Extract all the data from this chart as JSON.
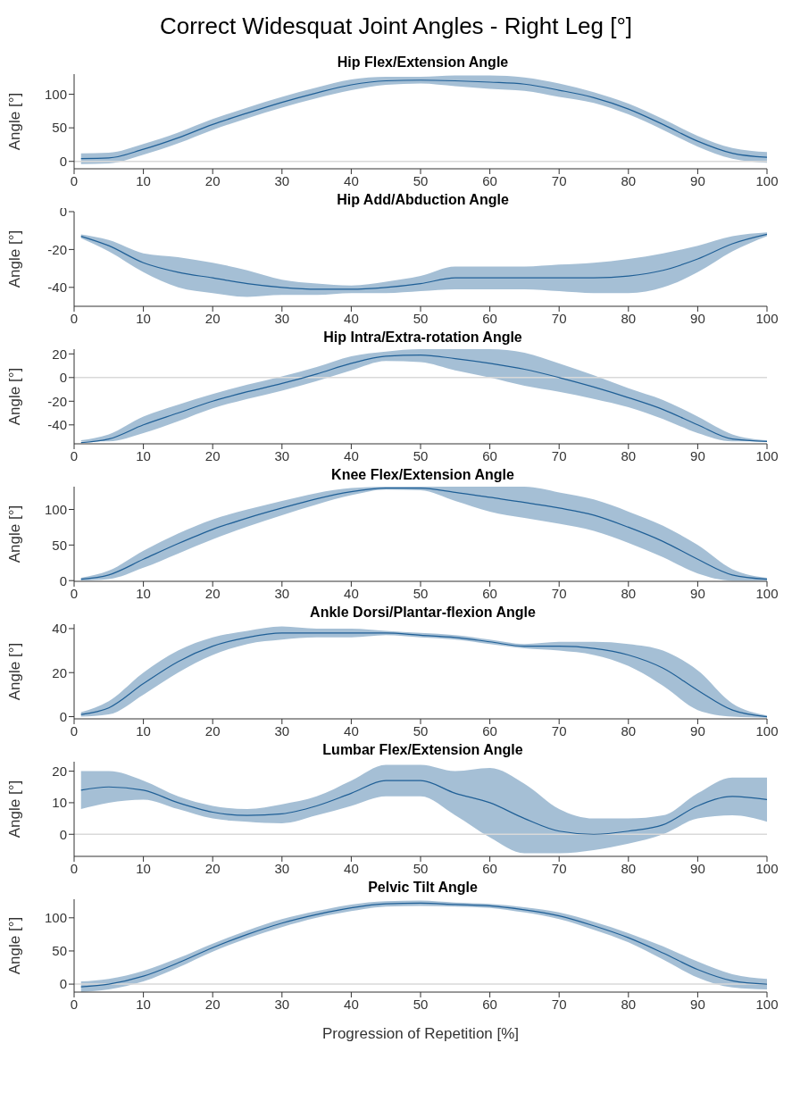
{
  "chart_data": [
    {
      "type": "line",
      "title": "Correct Widesquat Joint Angles - Right Leg [°]",
      "subtitle": "Hip Flex/Extension Angle",
      "ylabel": "Angle [°]",
      "x": [
        1,
        5,
        10,
        15,
        20,
        25,
        30,
        35,
        40,
        45,
        50,
        55,
        60,
        65,
        70,
        75,
        80,
        85,
        90,
        95,
        100
      ],
      "xlim": [
        0,
        100
      ],
      "xticks": [
        0,
        10,
        20,
        30,
        40,
        50,
        60,
        70,
        80,
        90,
        100
      ],
      "ylim": [
        -11,
        130
      ],
      "yticks": [
        0,
        50,
        100
      ],
      "ref_lines": [
        {
          "axis": "y",
          "value": 0,
          "color": "#d9d9d9"
        }
      ],
      "series": [
        {
          "color": "#1f5f96",
          "values": [
            4,
            5,
            18,
            35,
            55,
            72,
            88,
            102,
            114,
            120,
            121,
            120,
            118,
            115,
            106,
            95,
            78,
            55,
            30,
            12,
            6
          ],
          "lower": [
            -4,
            -3,
            10,
            27,
            47,
            64,
            80,
            94,
            106,
            114,
            116,
            112,
            108,
            105,
            96,
            87,
            70,
            47,
            22,
            4,
            -2
          ],
          "upper": [
            12,
            13,
            26,
            43,
            63,
            80,
            96,
            110,
            122,
            126,
            126,
            128,
            128,
            125,
            116,
            103,
            86,
            63,
            38,
            20,
            14
          ]
        }
      ]
    },
    {
      "type": "line",
      "subtitle": "Hip Add/Abduction Angle",
      "ylabel": "Angle [°]",
      "x": [
        1,
        5,
        10,
        15,
        20,
        25,
        30,
        35,
        40,
        45,
        50,
        55,
        60,
        65,
        70,
        75,
        80,
        85,
        90,
        95,
        100
      ],
      "xlim": [
        0,
        100
      ],
      "xticks": [
        0,
        10,
        20,
        30,
        40,
        50,
        60,
        70,
        80,
        90,
        100
      ],
      "ylim": [
        -50,
        0
      ],
      "yticks": [
        -40,
        -20,
        0
      ],
      "series": [
        {
          "color": "#1f5f96",
          "values": [
            -13,
            -18,
            -27,
            -32,
            -35,
            -38,
            -40,
            -41,
            -41,
            -40,
            -38,
            -35,
            -35,
            -35,
            -35,
            -35,
            -34,
            -31,
            -25,
            -17,
            -12
          ],
          "lower": [
            -14,
            -21,
            -32,
            -40,
            -43,
            -45,
            -44,
            -44,
            -43,
            -43,
            -42,
            -41,
            -41,
            -41,
            -42,
            -43,
            -43,
            -40,
            -32,
            -21,
            -13
          ],
          "upper": [
            -12,
            -15,
            -22,
            -24,
            -27,
            -31,
            -36,
            -38,
            -39,
            -37,
            -34,
            -29,
            -29,
            -29,
            -28,
            -27,
            -25,
            -22,
            -18,
            -13,
            -11
          ]
        }
      ]
    },
    {
      "type": "line",
      "subtitle": "Hip Intra/Extra-rotation Angle",
      "ylabel": "Angle [°]",
      "x": [
        1,
        5,
        10,
        15,
        20,
        25,
        30,
        35,
        40,
        45,
        50,
        55,
        60,
        65,
        70,
        75,
        80,
        85,
        90,
        95,
        100
      ],
      "xlim": [
        0,
        100
      ],
      "xticks": [
        0,
        10,
        20,
        30,
        40,
        50,
        60,
        70,
        80,
        90,
        100
      ],
      "ylim": [
        -56,
        24
      ],
      "yticks": [
        -40,
        -20,
        0,
        20
      ],
      "ref_lines": [
        {
          "axis": "y",
          "value": 0,
          "color": "#d9d9d9"
        }
      ],
      "series": [
        {
          "color": "#1f5f96",
          "values": [
            -55,
            -52,
            -40,
            -30,
            -20,
            -12,
            -5,
            3,
            12,
            18,
            19,
            16,
            12,
            7,
            0,
            -8,
            -17,
            -27,
            -40,
            -52,
            -54
          ],
          "lower": [
            -54,
            -54,
            -47,
            -37,
            -26,
            -18,
            -11,
            -3,
            6,
            14,
            13,
            6,
            0,
            -7,
            -12,
            -18,
            -25,
            -35,
            -47,
            -54,
            -54
          ],
          "upper": [
            -53,
            -48,
            -33,
            -23,
            -14,
            -6,
            1,
            9,
            18,
            22,
            24,
            24,
            24,
            21,
            12,
            2,
            -9,
            -19,
            -33,
            -48,
            -53
          ]
        }
      ]
    },
    {
      "type": "line",
      "subtitle": "Knee Flex/Extension Angle",
      "ylabel": "Angle [°]",
      "x": [
        1,
        5,
        10,
        15,
        20,
        25,
        30,
        35,
        40,
        45,
        50,
        55,
        60,
        65,
        70,
        75,
        80,
        85,
        90,
        95,
        100
      ],
      "xlim": [
        0,
        100
      ],
      "xticks": [
        0,
        10,
        20,
        30,
        40,
        50,
        60,
        70,
        80,
        90,
        100
      ],
      "ylim": [
        -1,
        132
      ],
      "yticks": [
        0,
        50,
        100
      ],
      "series": [
        {
          "color": "#1f5f96",
          "values": [
            2,
            8,
            30,
            52,
            72,
            88,
            102,
            115,
            125,
            130,
            130,
            124,
            117,
            110,
            102,
            92,
            75,
            55,
            30,
            8,
            2
          ],
          "lower": [
            0,
            2,
            18,
            38,
            58,
            76,
            92,
            107,
            120,
            128,
            127,
            112,
            97,
            88,
            80,
            70,
            53,
            33,
            10,
            0,
            0
          ],
          "upper": [
            4,
            14,
            42,
            66,
            86,
            100,
            112,
            123,
            130,
            132,
            132,
            132,
            132,
            132,
            124,
            114,
            97,
            77,
            50,
            16,
            4
          ]
        }
      ]
    },
    {
      "type": "line",
      "subtitle": "Ankle Dorsi/Plantar-flexion Angle",
      "ylabel": "Angle [°]",
      "x": [
        1,
        5,
        10,
        15,
        20,
        25,
        30,
        35,
        40,
        45,
        50,
        55,
        60,
        65,
        70,
        75,
        80,
        85,
        90,
        95,
        100
      ],
      "xlim": [
        0,
        100
      ],
      "xticks": [
        0,
        10,
        20,
        30,
        40,
        50,
        60,
        70,
        80,
        90,
        100
      ],
      "ylim": [
        -1,
        42
      ],
      "yticks": [
        0,
        20,
        40
      ],
      "series": [
        {
          "color": "#1f5f96",
          "values": [
            1,
            4,
            15,
            25,
            32,
            36,
            38,
            38,
            38,
            38,
            37,
            36,
            34,
            32,
            32,
            31,
            28,
            22,
            12,
            3,
            0
          ],
          "lower": [
            0,
            1,
            10,
            20,
            28,
            33,
            35,
            36,
            36,
            37,
            36,
            35,
            33,
            31,
            30,
            28,
            23,
            14,
            3,
            0,
            -0.5
          ],
          "upper": [
            2,
            7,
            20,
            30,
            36,
            39,
            41,
            40,
            40,
            39,
            38,
            37,
            35,
            33,
            34,
            34,
            33,
            30,
            21,
            6,
            0.5
          ]
        }
      ]
    },
    {
      "type": "line",
      "subtitle": "Lumbar Flex/Extension Angle",
      "ylabel": "Angle [°]",
      "x": [
        1,
        5,
        10,
        15,
        20,
        25,
        30,
        35,
        40,
        45,
        50,
        55,
        60,
        65,
        70,
        75,
        80,
        85,
        90,
        95,
        100
      ],
      "xlim": [
        0,
        100
      ],
      "xticks": [
        0,
        10,
        20,
        30,
        40,
        50,
        60,
        70,
        80,
        90,
        100
      ],
      "ylim": [
        -7,
        23
      ],
      "yticks": [
        0,
        10,
        20
      ],
      "ref_lines": [
        {
          "axis": "y",
          "value": 0,
          "color": "#d9d9d9"
        }
      ],
      "series": [
        {
          "color": "#1f5f96",
          "values": [
            14,
            15,
            14,
            10,
            7,
            6,
            6.5,
            9,
            13,
            17,
            17,
            13,
            10,
            5,
            1,
            0,
            1,
            3,
            9,
            12,
            11
          ],
          "lower": [
            8,
            10,
            11,
            8,
            5,
            4,
            3.5,
            6,
            9,
            12,
            12,
            6,
            -1,
            -6,
            -6,
            -5,
            -3,
            0,
            5,
            6,
            4
          ],
          "upper": [
            20,
            20,
            17,
            12,
            9,
            8,
            9.5,
            12,
            17,
            22,
            22,
            20,
            21,
            16,
            8,
            5,
            5,
            6,
            13,
            18,
            18
          ]
        }
      ]
    },
    {
      "type": "line",
      "subtitle": "Pelvic Tilt Angle",
      "xlabel": "Progression of Repetition [%]",
      "ylabel": "Angle [°]",
      "x": [
        1,
        5,
        10,
        15,
        20,
        25,
        30,
        35,
        40,
        45,
        50,
        55,
        60,
        65,
        70,
        75,
        80,
        85,
        90,
        95,
        100
      ],
      "xlim": [
        0,
        100
      ],
      "xticks": [
        0,
        10,
        20,
        30,
        40,
        50,
        60,
        70,
        80,
        90,
        100
      ],
      "ylim": [
        -12,
        128
      ],
      "yticks": [
        0,
        50,
        100
      ],
      "ref_lines": [
        {
          "axis": "y",
          "value": 0,
          "color": "#d9d9d9"
        }
      ],
      "series": [
        {
          "color": "#1f5f96",
          "values": [
            -4,
            0,
            12,
            32,
            55,
            75,
            92,
            105,
            115,
            121,
            122,
            120,
            118,
            112,
            103,
            88,
            70,
            47,
            22,
            5,
            0
          ],
          "lower": [
            -12,
            -8,
            4,
            25,
            49,
            69,
            86,
            100,
            110,
            117,
            118,
            117,
            115,
            108,
            98,
            82,
            63,
            37,
            10,
            -5,
            -8
          ],
          "upper": [
            4,
            8,
            20,
            39,
            61,
            81,
            98,
            110,
            120,
            125,
            126,
            123,
            121,
            116,
            108,
            94,
            77,
            57,
            34,
            15,
            8
          ]
        }
      ]
    }
  ]
}
